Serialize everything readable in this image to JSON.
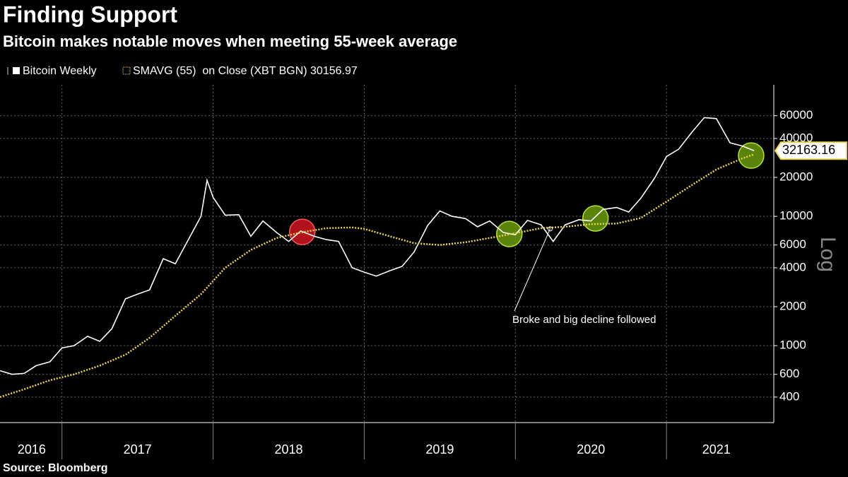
{
  "chart_data": {
    "type": "line",
    "title": "Finding Support",
    "subtitle": "Bitcoin makes notable moves when meeting 55-week average",
    "source": "Source: Bloomberg",
    "log_scale": true,
    "grid": true,
    "axis_label": "Log",
    "xlim": [
      2016.59,
      2021.71
    ],
    "xticks": [
      {
        "value": 2016.8,
        "label": "2016"
      },
      {
        "value": 2017.5,
        "label": "2017"
      },
      {
        "value": 2018.5,
        "label": "2018"
      },
      {
        "value": 2019.5,
        "label": "2019"
      },
      {
        "value": 2020.5,
        "label": "2020"
      },
      {
        "value": 2021.33,
        "label": "2021"
      }
    ],
    "xgrid": [
      2017,
      2018,
      2019,
      2020,
      2021
    ],
    "ylim": [
      254,
      104000
    ],
    "yticks": [
      400,
      600,
      1000,
      2000,
      4000,
      6000,
      10000,
      20000,
      40000,
      60000
    ],
    "series": [
      {
        "name": "Bitcoin Weekly",
        "color": "#ffffff",
        "x": [
          2016.59,
          2016.67,
          2016.75,
          2016.83,
          2016.92,
          2017.0,
          2017.08,
          2017.17,
          2017.25,
          2017.33,
          2017.42,
          2017.5,
          2017.58,
          2017.67,
          2017.75,
          2017.83,
          2017.92,
          2017.96,
          2018.0,
          2018.08,
          2018.17,
          2018.25,
          2018.33,
          2018.42,
          2018.5,
          2018.58,
          2018.67,
          2018.75,
          2018.83,
          2018.92,
          2019.0,
          2019.08,
          2019.17,
          2019.25,
          2019.33,
          2019.42,
          2019.5,
          2019.58,
          2019.67,
          2019.75,
          2019.83,
          2019.92,
          2020.0,
          2020.08,
          2020.17,
          2020.25,
          2020.33,
          2020.42,
          2020.5,
          2020.58,
          2020.67,
          2020.75,
          2020.83,
          2020.92,
          2021.0,
          2021.08,
          2021.17,
          2021.25,
          2021.33,
          2021.42,
          2021.5,
          2021.58
        ],
        "values": [
          640,
          600,
          610,
          700,
          750,
          960,
          1000,
          1180,
          1080,
          1350,
          2300,
          2500,
          2700,
          4700,
          4300,
          6400,
          10000,
          19000,
          14000,
          10200,
          10300,
          7000,
          9200,
          7500,
          6400,
          7700,
          7000,
          6600,
          6400,
          4000,
          3700,
          3450,
          3800,
          4100,
          5300,
          8500,
          11000,
          10000,
          9600,
          8300,
          9200,
          7500,
          7200,
          9300,
          8600,
          6400,
          8600,
          9400,
          9200,
          11300,
          11700,
          10800,
          13800,
          19600,
          29000,
          33000,
          45000,
          58000,
          57000,
          37000,
          35000,
          32163.16
        ],
        "last_label": "32163.16"
      },
      {
        "name": "SMAVG (55)  on Close (XBT BGN) 30156.97",
        "color": "#e8d44d",
        "x": [
          2016.59,
          2016.75,
          2016.92,
          2017.08,
          2017.25,
          2017.42,
          2017.58,
          2017.75,
          2017.92,
          2018.08,
          2018.25,
          2018.42,
          2018.58,
          2018.75,
          2018.92,
          2019.0,
          2019.17,
          2019.33,
          2019.5,
          2019.67,
          2019.83,
          2020.0,
          2020.17,
          2020.33,
          2020.5,
          2020.67,
          2020.83,
          2021.0,
          2021.17,
          2021.33,
          2021.5,
          2021.58
        ],
        "values": [
          400,
          460,
          540,
          600,
          700,
          850,
          1150,
          1700,
          2500,
          4000,
          5500,
          6800,
          7500,
          8100,
          8200,
          8000,
          7000,
          6200,
          6000,
          6300,
          6800,
          7400,
          8100,
          8300,
          8700,
          8800,
          9700,
          13000,
          17500,
          23000,
          28000,
          30156.97
        ]
      }
    ],
    "highlights": [
      {
        "x": 2018.59,
        "y": 7580,
        "color": "#d0161e"
      },
      {
        "x": 2019.96,
        "y": 7300,
        "color": "#6a9a0a"
      },
      {
        "x": 2020.53,
        "y": 9630,
        "color": "#6a9a0a"
      },
      {
        "x": 2021.56,
        "y": 29500,
        "color": "#6a9a0a"
      }
    ],
    "annotation": {
      "text": "Broke and big decline followed",
      "x": 2020.23,
      "y": 8000
    }
  }
}
